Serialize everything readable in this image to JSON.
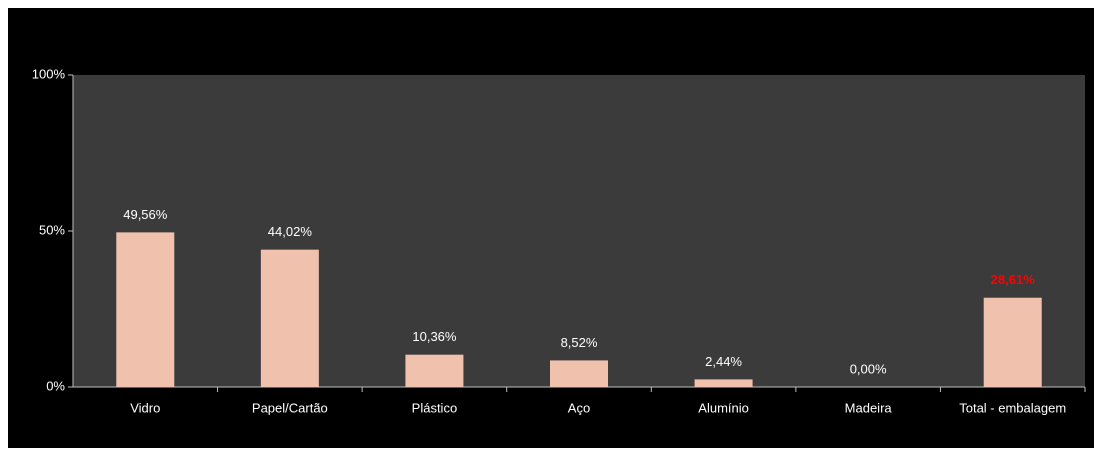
{
  "chart_data": {
    "type": "bar",
    "categories": [
      "Vidro",
      "Papel/Cartão",
      "Plástico",
      "Aço",
      "Alumínio",
      "Madeira",
      "Total - embalagem"
    ],
    "values": [
      49.56,
      44.02,
      10.36,
      8.52,
      2.44,
      0.0,
      28.61
    ],
    "value_labels": [
      "49,56%",
      "44,02%",
      "10,36%",
      "8,52%",
      "2,44%",
      "0,00%",
      "28,61%"
    ],
    "value_label_colors": [
      "#ffffff",
      "#ffffff",
      "#ffffff",
      "#ffffff",
      "#ffffff",
      "#ffffff",
      "#ff0000"
    ],
    "color": "#f0c2ae",
    "ylim": [
      0,
      100
    ],
    "yticks": [
      {
        "value": 0,
        "label": "0%"
      },
      {
        "value": 50,
        "label": "50%"
      },
      {
        "value": 100,
        "label": "100%"
      }
    ],
    "grid": false
  }
}
